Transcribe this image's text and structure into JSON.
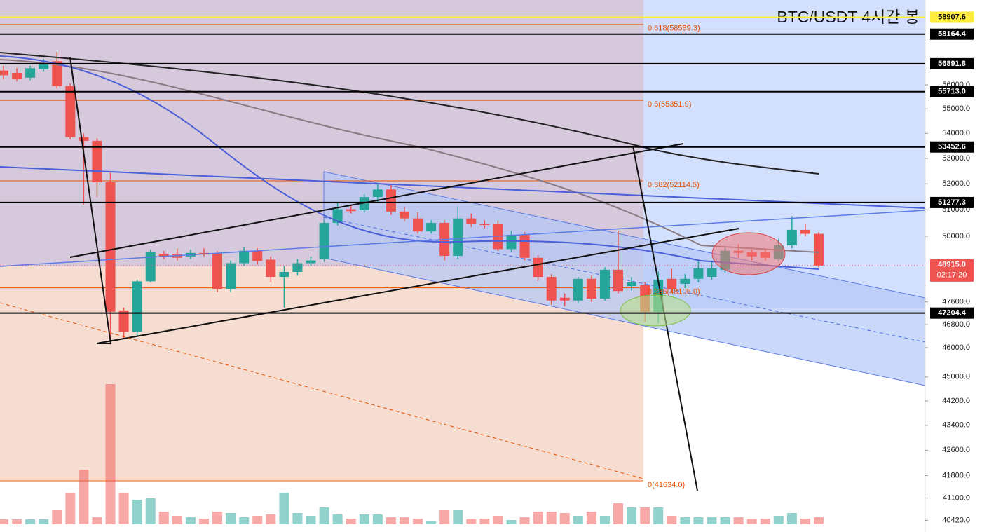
{
  "chart_data": {
    "type": "candlestick",
    "title": "BTC/USDT 4시간 봉",
    "log_scale": true,
    "ylim": [
      40070,
      59670
    ],
    "yticks": [
      {
        "value": 56000,
        "label": "56000.0"
      },
      {
        "value": 55000,
        "label": "55000.0"
      },
      {
        "value": 54000,
        "label": "54000.0"
      },
      {
        "value": 53000,
        "label": "53000.0"
      },
      {
        "value": 52000,
        "label": "52000.0"
      },
      {
        "value": 51000,
        "label": "51000.0"
      },
      {
        "value": 50000,
        "label": "50000.0"
      },
      {
        "value": 47600,
        "label": "47600.0"
      },
      {
        "value": 46800,
        "label": "46800.0"
      },
      {
        "value": 46000,
        "label": "46000.0"
      },
      {
        "value": 45000,
        "label": "45000.0"
      },
      {
        "value": 44200,
        "label": "44200.0"
      },
      {
        "value": 43400,
        "label": "43400.0"
      },
      {
        "value": 42600,
        "label": "42600.0"
      },
      {
        "value": 41800,
        "label": "41800.0"
      },
      {
        "value": 41100,
        "label": "41100.0"
      },
      {
        "value": 40420,
        "label": "40420.0"
      }
    ],
    "up_color": "#26a69a",
    "down_color": "#ef5350",
    "open": [
      56600,
      56500,
      56300,
      56650,
      57000,
      55950,
      53850,
      53700,
      52060,
      47300,
      46550,
      48340,
      49350,
      49350,
      49250,
      49380,
      49350,
      48060,
      49000,
      49460,
      49130,
      48500,
      48680,
      49000,
      49150,
      50500,
      51020,
      50980,
      51490,
      51780,
      50930,
      50670,
      50180,
      50500,
      49270,
      50670,
      50450,
      50450,
      49520,
      50050,
      49200,
      48500,
      47750,
      47650,
      48430,
      47720,
      48760,
      48170,
      48200,
      47250,
      48430,
      48250,
      48430,
      48500,
      48760,
      49460,
      49400,
      49400,
      49140,
      49660,
      50240,
      50090
    ],
    "close": [
      56400,
      56250,
      56700,
      56900,
      55950,
      53850,
      53700,
      52060,
      47250,
      46550,
      48340,
      49400,
      49250,
      49200,
      49380,
      49320,
      48060,
      49000,
      49460,
      49080,
      48500,
      48680,
      49000,
      49100,
      50500,
      51020,
      50950,
      51490,
      51780,
      50930,
      50670,
      50180,
      50500,
      49270,
      50670,
      50450,
      50420,
      49520,
      50050,
      49200,
      48500,
      47650,
      47650,
      48430,
      47720,
      48760,
      47990,
      48300,
      47250,
      48400,
      48060,
      48430,
      48810,
      48810,
      49460,
      49380,
      49250,
      49200,
      49660,
      50240,
      50090,
      48915
    ],
    "high": [
      56800,
      56700,
      56800,
      57100,
      57400,
      56050,
      54000,
      53800,
      52500,
      47400,
      48400,
      49500,
      49450,
      49550,
      49500,
      49550,
      49450,
      49100,
      49600,
      49550,
      49250,
      48900,
      49150,
      49250,
      50600,
      51300,
      51150,
      51600,
      52000,
      52000,
      51100,
      50900,
      50600,
      50600,
      51100,
      50850,
      50600,
      50600,
      50200,
      50150,
      49300,
      48600,
      47900,
      48500,
      48550,
      48850,
      50200,
      48500,
      48300,
      48700,
      48800,
      48600,
      49100,
      49100,
      49600,
      49700,
      49500,
      49550,
      49900,
      50750,
      50450,
      50150
    ],
    "low": [
      56250,
      56150,
      56200,
      56550,
      55850,
      53750,
      51200,
      51500,
      46100,
      46300,
      46400,
      48300,
      49150,
      49100,
      49150,
      49250,
      47950,
      47950,
      48900,
      48950,
      48300,
      47400,
      48550,
      48900,
      49050,
      50400,
      50850,
      50900,
      51300,
      50800,
      50550,
      50100,
      50100,
      49100,
      49150,
      50350,
      50300,
      49450,
      49400,
      49100,
      48350,
      47500,
      47450,
      47550,
      47600,
      47650,
      47900,
      48000,
      46900,
      46850,
      47950,
      48100,
      48300,
      48400,
      48650,
      49200,
      49100,
      49100,
      49050,
      49550,
      50000,
      48850
    ],
    "volume": [
      7,
      7,
      7,
      7,
      20,
      45,
      78,
      10,
      200,
      45,
      35,
      37,
      18,
      12,
      10,
      8,
      18,
      16,
      10,
      12,
      14,
      45,
      16,
      12,
      24,
      14,
      8,
      14,
      14,
      10,
      10,
      8,
      4,
      20,
      20,
      8,
      8,
      12,
      6,
      10,
      18,
      18,
      16,
      12,
      18,
      12,
      30,
      24,
      24,
      24,
      12,
      10,
      10,
      10,
      10,
      10,
      8,
      8,
      12,
      16,
      8,
      10
    ],
    "volume_lim": [
      0,
      200
    ],
    "levels": [
      {
        "value": 58907.6,
        "label": "58907.6",
        "color": "#ffeb3b"
      },
      {
        "value": 58164.4,
        "label": "58164.4",
        "color": "#000000"
      },
      {
        "value": 56891.8,
        "label": "56891.8",
        "color": "#000000"
      },
      {
        "value": 55713.0,
        "label": "55713.0",
        "color": "#000000"
      },
      {
        "value": 53452.6,
        "label": "53452.6",
        "color": "#000000"
      },
      {
        "value": 51277.3,
        "label": "51277.3",
        "color": "#000000"
      },
      {
        "value": 47204.4,
        "label": "47204.4",
        "color": "#000000"
      }
    ],
    "last_price": {
      "value": 48915.0,
      "label": "48915.0"
    },
    "countdown": "02:17:20",
    "fib_levels": [
      {
        "value": 58589.3,
        "label": "0.618(58589.3)"
      },
      {
        "value": 55351.9,
        "label": "0.5(55351.9)"
      },
      {
        "value": 52114.5,
        "label": "0.382(52114.5)"
      },
      {
        "value": 48106.0,
        "label": "0.236(48106.0)"
      },
      {
        "value": 41634.0,
        "label": "0(41634.0)"
      }
    ]
  }
}
